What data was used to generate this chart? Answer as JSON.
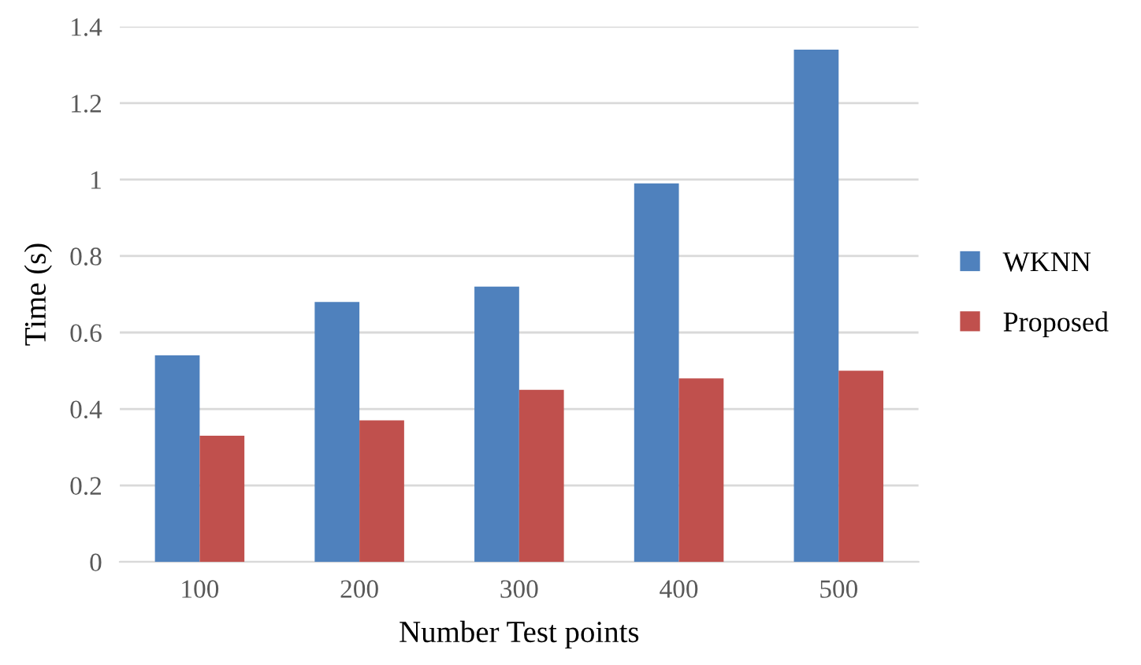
{
  "chart_data": {
    "type": "bar",
    "xlabel": "Number Test points",
    "ylabel": "Time (s)",
    "categories": [
      "100",
      "200",
      "300",
      "400",
      "500"
    ],
    "series": [
      {
        "name": "WKNN",
        "color": "#4f81bd",
        "values": [
          0.54,
          0.68,
          0.72,
          0.99,
          1.34
        ]
      },
      {
        "name": "Proposed",
        "color": "#c0504d",
        "values": [
          0.33,
          0.37,
          0.45,
          0.48,
          0.5
        ]
      }
    ],
    "ylim": [
      0,
      1.4
    ],
    "yticks": [
      {
        "value": 0,
        "label": "0"
      },
      0.2,
      0.4,
      0.6,
      0.8,
      {
        "value": 1,
        "label": "1"
      },
      1.2,
      1.4
    ],
    "grid": "y",
    "legend": "right"
  }
}
